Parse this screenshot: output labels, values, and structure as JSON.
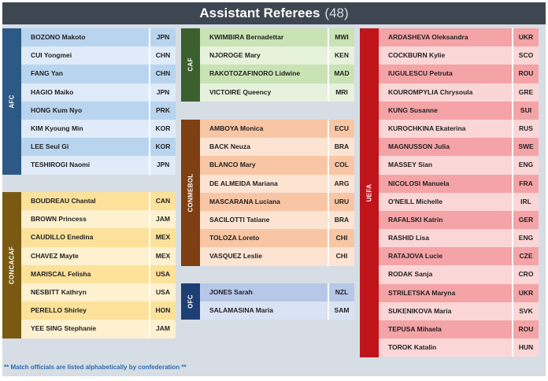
{
  "title": "Assistant Referees",
  "count": "(48)",
  "footer": "** Match officials are listed alphabetically by confederation **",
  "groups": {
    "afc": {
      "label": "AFC",
      "band_color": "#2d5986",
      "row_colors": [
        "#b9d4ee",
        "#dfebf8"
      ],
      "referees": [
        {
          "name": "BOZONO Makoto",
          "code": "JPN"
        },
        {
          "name": "CUI Yongmei",
          "code": "CHN"
        },
        {
          "name": "FANG Yan",
          "code": "CHN"
        },
        {
          "name": "HAGIO Maiko",
          "code": "JPN"
        },
        {
          "name": "HONG Kum Nyo",
          "code": "PRK"
        },
        {
          "name": "KIM Kyoung Min",
          "code": "KOR"
        },
        {
          "name": "LEE Seul Gi",
          "code": "KOR"
        },
        {
          "name": "TESHIROGI Naomi",
          "code": "JPN"
        }
      ]
    },
    "concacaf": {
      "label": "CONCACAF",
      "band_color": "#7a5a13",
      "row_colors": [
        "#fbe19a",
        "#fdf1cf"
      ],
      "referees": [
        {
          "name": "BOUDREAU Chantal",
          "code": "CAN"
        },
        {
          "name": "BROWN Princess",
          "code": "JAM"
        },
        {
          "name": "CAUDILLO Enedina",
          "code": "MEX"
        },
        {
          "name": "CHAVEZ Mayte",
          "code": "MEX"
        },
        {
          "name": "MARISCAL Felisha",
          "code": "USA"
        },
        {
          "name": "NESBITT Kathryn",
          "code": "USA"
        },
        {
          "name": "PERELLO Shirley",
          "code": "HON"
        },
        {
          "name": "YEE SING Stephanie",
          "code": "JAM"
        }
      ]
    },
    "caf": {
      "label": "CAF",
      "band_color": "#3c5f2e",
      "row_colors": [
        "#c9e3b4",
        "#e6f2dc"
      ],
      "referees": [
        {
          "name": "KWIMBIRA Bernadettar",
          "code": "MWI"
        },
        {
          "name": "NJOROGE Mary",
          "code": "KEN"
        },
        {
          "name": "RAKOTOZAFINORO Lidwine",
          "code": "MAD"
        },
        {
          "name": "VICTOIRE Queency",
          "code": "MRI"
        }
      ]
    },
    "conmebol": {
      "label": "CONMEBOL",
      "band_color": "#7e3f12",
      "row_colors": [
        "#f8c6a4",
        "#fce3d2"
      ],
      "referees": [
        {
          "name": "AMBOYA Monica",
          "code": "ECU"
        },
        {
          "name": "BACK Neuza",
          "code": "BRA"
        },
        {
          "name": "BLANCO Mary",
          "code": "COL"
        },
        {
          "name": "DE ALMEIDA Mariana",
          "code": "ARG"
        },
        {
          "name": "MASCARANA Luciana",
          "code": "URU"
        },
        {
          "name": "SACILOTTI Tatiane",
          "code": "BRA"
        },
        {
          "name": "TOLOZA Loreto",
          "code": "CHI"
        },
        {
          "name": "VASQUEZ Leslie",
          "code": "CHI"
        }
      ]
    },
    "ofc": {
      "label": "OFC",
      "band_color": "#1e3f73",
      "row_colors": [
        "#b6c7e8",
        "#dae3f4"
      ],
      "referees": [
        {
          "name": "JONES Sarah",
          "code": "NZL"
        },
        {
          "name": "SALAMASINA Maria",
          "code": "SAM"
        }
      ]
    },
    "uefa": {
      "label": "UEFA",
      "band_color": "#c0141b",
      "row_colors": [
        "#f4a3a6",
        "#fbd6d7"
      ],
      "referees": [
        {
          "name": "ARDASHEVA Oleksandra",
          "code": "UKR"
        },
        {
          "name": "COCKBURN Kylie",
          "code": "SCO"
        },
        {
          "name": "IUGULESCU Petruta",
          "code": "ROU"
        },
        {
          "name": "KOUROMPYLIA Chrysoula",
          "code": "GRE"
        },
        {
          "name": "KUNG Susanne",
          "code": "SUI"
        },
        {
          "name": "KUROCHKINA Ekaterina",
          "code": "RUS"
        },
        {
          "name": "MAGNUSSON Julia",
          "code": "SWE"
        },
        {
          "name": "MASSEY Sian",
          "code": "ENG"
        },
        {
          "name": "NICOLOSI Manuela",
          "code": "FRA"
        },
        {
          "name": "O'NEILL Michelle",
          "code": "IRL"
        },
        {
          "name": "RAFALSKI Katrin",
          "code": "GER"
        },
        {
          "name": "RASHID Lisa",
          "code": "ENG"
        },
        {
          "name": "RATAJOVA Lucie",
          "code": "CZE"
        },
        {
          "name": "RODAK Sanja",
          "code": "CRO"
        },
        {
          "name": "STRILETSKA Maryna",
          "code": "UKR"
        },
        {
          "name": "SUKENIKOVA Maria",
          "code": "SVK"
        },
        {
          "name": "TEPUSA Mihaela",
          "code": "ROU"
        },
        {
          "name": "TOROK Katalin",
          "code": "HUN"
        }
      ]
    }
  }
}
